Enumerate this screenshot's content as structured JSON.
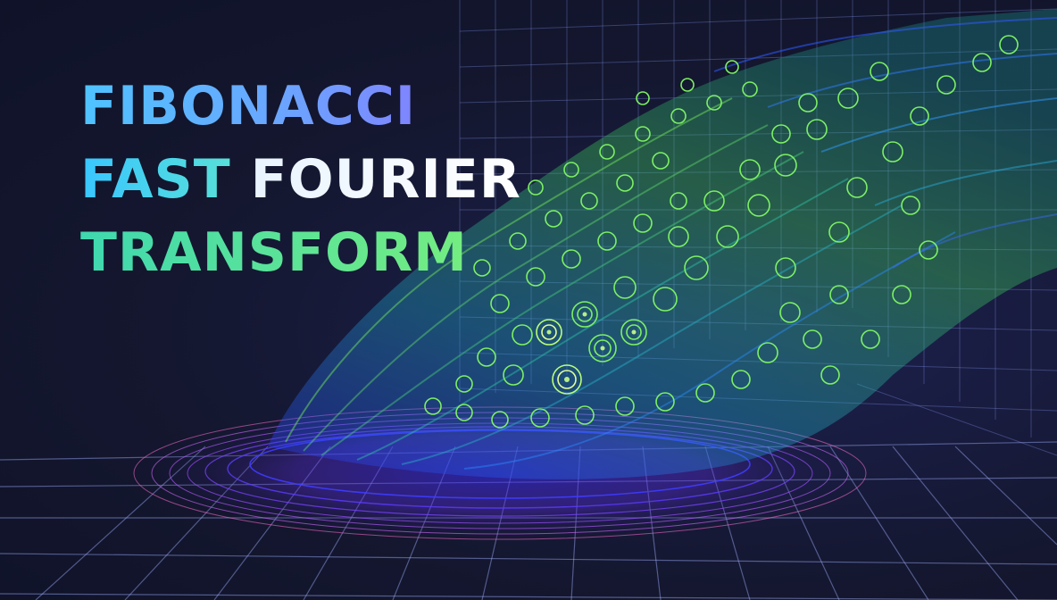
{
  "title": {
    "line1": "FIBONACCI",
    "line2_part1": "FAST",
    "line2_part2": "FOURIER",
    "line3": "TRANSFORM"
  },
  "colors": {
    "background": "#14172f",
    "grid": "#8fa2ff",
    "spiral_green": "#6ee05a",
    "spiral_teal": "#2fc6a8",
    "spiral_blue": "#2f5bff",
    "base_purple": "#9b4dff",
    "base_pink": "#ff6fd0"
  }
}
